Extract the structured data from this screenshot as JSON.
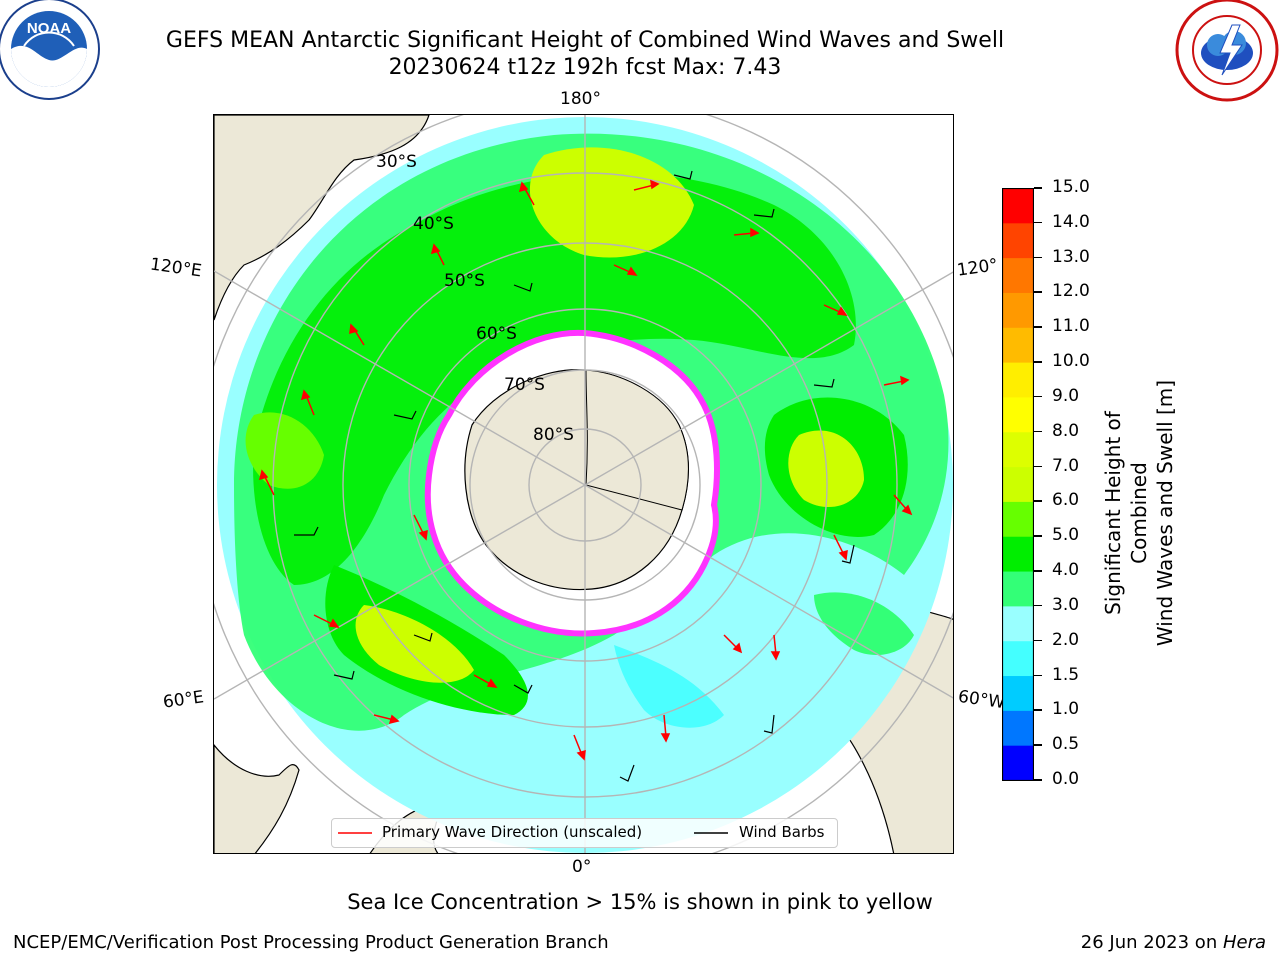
{
  "title": {
    "line1": "GEFS MEAN Antarctic Significant Height of Combined Wind Waves and Swell",
    "line2": "20230624 t12z 192h fcst   Max: 7.43"
  },
  "logos": {
    "left_icon": "noaa-logo",
    "right_icon": "nws-logo"
  },
  "map": {
    "projection": "south-polar-stereographic",
    "longitude_labels": {
      "top": "180°",
      "bottom": "0°",
      "upper_left": "120°E",
      "upper_right": "120°",
      "lower_left": "60°E",
      "lower_right": "60°W"
    },
    "latitude_labels": [
      "30°S",
      "40°S",
      "50°S",
      "60°S",
      "70°S",
      "80°S"
    ],
    "colors": {
      "land": "#ece8d7",
      "ice_shelf": "#ffffff",
      "ice_edge": "#ff33ff",
      "grid": "#b5b5b5",
      "wave_arrow": "#ff0000",
      "wind_barb": "#000000"
    }
  },
  "colorbar": {
    "label_line1": "Significant Height of Combined",
    "label_line2": "Wind Waves and Swell [m]",
    "ticks": [
      "0.0",
      "0.5",
      "1.0",
      "1.5",
      "2.0",
      "3.0",
      "4.0",
      "5.0",
      "6.0",
      "7.0",
      "8.0",
      "9.0",
      "10.0",
      "11.0",
      "12.0",
      "13.0",
      "14.0",
      "15.0"
    ],
    "colors": [
      "#0000ff",
      "#0077ff",
      "#00ccff",
      "#44ffff",
      "#99ffff",
      "#33ff77",
      "#00ee00",
      "#66ff00",
      "#ccff00",
      "#ddff00",
      "#ffff00",
      "#ffee00",
      "#ffbb00",
      "#ff9900",
      "#ff7700",
      "#ff4400",
      "#ff0000"
    ]
  },
  "legend": {
    "primary_wave": "Primary Wave Direction (unscaled)",
    "wind_barbs": "Wind Barbs"
  },
  "caption": "Sea Ice Concentration > 15% is shown in pink to yellow",
  "footer": {
    "left": "NCEP/EMC/Verification Post Processing Product Generation Branch",
    "date": "26 Jun 2023 on ",
    "machine": "Hera"
  }
}
